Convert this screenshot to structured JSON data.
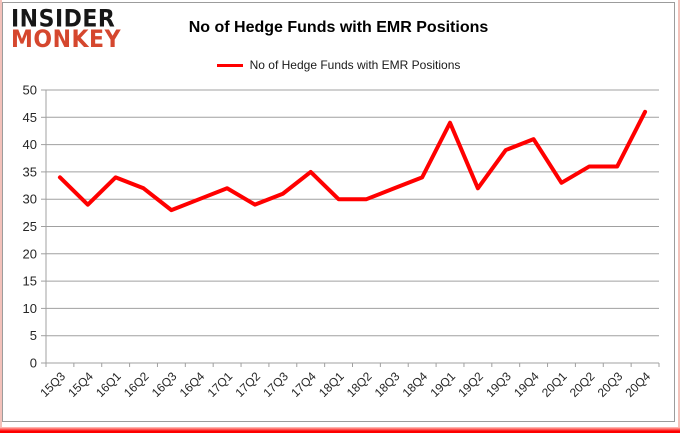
{
  "logo": {
    "line1": "INSIDER",
    "line2": "MONKEY"
  },
  "header": {
    "title": "No of Hedge Funds with EMR Positions"
  },
  "legend": {
    "label": "No of Hedge Funds with EMR Positions"
  },
  "colors": {
    "line": "#ff0000",
    "grid": "#a0a0a0",
    "axis_text": "#262626",
    "logo_black": "#171717",
    "logo_red": "#d5472e",
    "side_border": "#f3c1ba",
    "bottom_bar": "#fe0000"
  },
  "chart_data": {
    "type": "line",
    "title": "No of Hedge Funds with EMR Positions",
    "categories": [
      "15Q3",
      "15Q4",
      "16Q1",
      "16Q2",
      "16Q3",
      "16Q4",
      "17Q1",
      "17Q2",
      "17Q3",
      "17Q4",
      "18Q1",
      "18Q2",
      "18Q3",
      "18Q4",
      "19Q1",
      "19Q2",
      "19Q3",
      "19Q4",
      "20Q1",
      "20Q2",
      "20Q3",
      "20Q4"
    ],
    "series": [
      {
        "name": "No of Hedge Funds with EMR Positions",
        "color": "#ff0000",
        "values": [
          34,
          29,
          34,
          32,
          28,
          30,
          32,
          29,
          31,
          35,
          30,
          30,
          32,
          34,
          44,
          32,
          39,
          41,
          33,
          36,
          36,
          46
        ]
      }
    ],
    "xlabel": "",
    "ylabel": "",
    "ylim": [
      0,
      50
    ],
    "ytick_step": 5,
    "grid": true,
    "legend_position": "top-center",
    "x_tick_rotation": -45
  }
}
